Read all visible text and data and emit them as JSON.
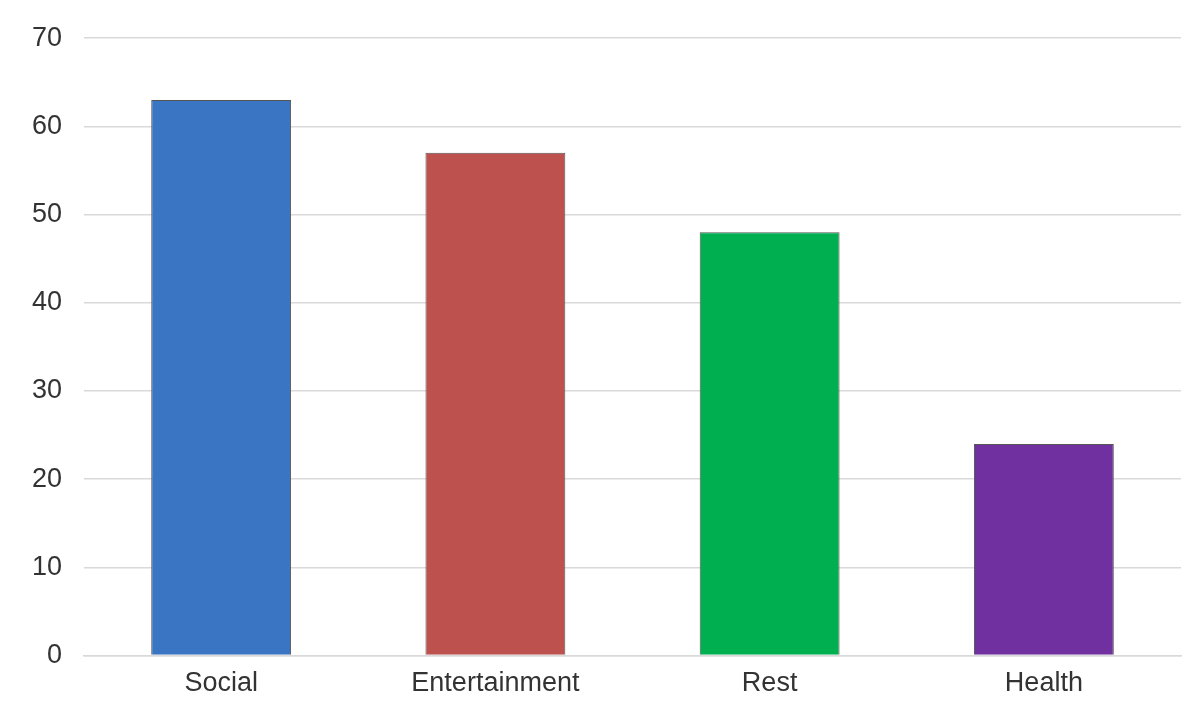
{
  "chart_data": {
    "type": "bar",
    "categories": [
      "Social",
      "Entertainment",
      "Rest",
      "Health"
    ],
    "values": [
      63,
      57,
      48,
      24
    ],
    "colors": [
      "#3a75c4",
      "#bc514e",
      "#00b050",
      "#7030a0"
    ],
    "ylim": [
      0,
      70
    ],
    "yticks": [
      0,
      10,
      20,
      30,
      40,
      50,
      60,
      70
    ],
    "grid": "y",
    "legend": false
  }
}
